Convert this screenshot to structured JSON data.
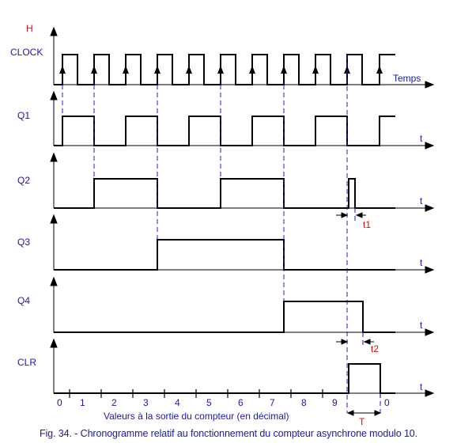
{
  "header_letter": "H",
  "clock_label": "CLOCK",
  "time_axis_label": "Temps",
  "t_axis_label": "t",
  "signals": [
    "Q1",
    "Q2",
    "Q3",
    "Q4",
    "CLR"
  ],
  "counter_values": [
    "0",
    "1",
    "2",
    "3",
    "4",
    "5",
    "6",
    "7",
    "8",
    "9",
    "0"
  ],
  "axis_caption": "Valeurs à la sortie du compteur (en décimal)",
  "delay_labels": {
    "t1": "t1",
    "t2": "t2",
    "T": "T"
  },
  "figure_caption": "Fig. 34. - Chronogramme relatif au fonctionnement du compteur asynchrone modulo 10.",
  "colors": {
    "text": "#1a1aa0",
    "annotation": "#d01010",
    "dashed": "#1a1acc",
    "line": "#000000"
  }
}
